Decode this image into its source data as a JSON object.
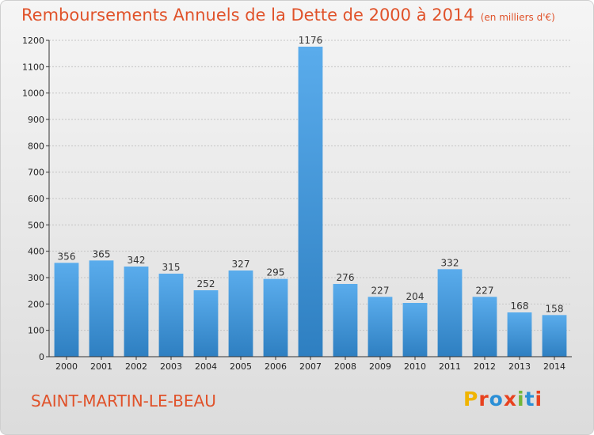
{
  "title": "Remboursements Annuels de la Dette de 2000 à 2014",
  "unit_note": "(en milliers d'€)",
  "location": "SAINT-MARTIN-LE-BEAU",
  "logo": {
    "letters": [
      "P",
      "r",
      "o",
      "x",
      "i",
      "t",
      "i"
    ],
    "colors": [
      "#f0b400",
      "#e8421f",
      "#2b8fd6",
      "#e8421f",
      "#72b63a",
      "#2b8fd6",
      "#e8421f"
    ]
  },
  "colors": {
    "accent": "#e0522a",
    "bar_top": "#5aacec",
    "bar_bottom": "#2e7fc1"
  },
  "chart_data": {
    "type": "bar",
    "categories": [
      "2000",
      "2001",
      "2002",
      "2003",
      "2004",
      "2005",
      "2006",
      "2007",
      "2008",
      "2009",
      "2010",
      "2011",
      "2012",
      "2013",
      "2014"
    ],
    "values": [
      356,
      365,
      342,
      315,
      252,
      327,
      295,
      1176,
      276,
      227,
      204,
      332,
      227,
      168,
      158
    ],
    "ylim": [
      0,
      1200
    ],
    "yticks": [
      0,
      100,
      200,
      300,
      400,
      500,
      600,
      700,
      800,
      900,
      1000,
      1100,
      1200
    ],
    "grid": true,
    "legend": false
  }
}
